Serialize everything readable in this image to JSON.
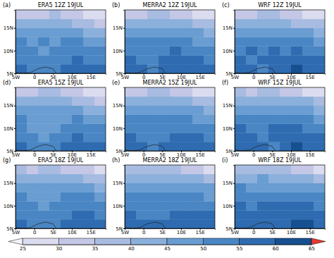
{
  "chart_data": {
    "type": "heatmap",
    "xlim": [
      -5,
      19
    ],
    "ylim": [
      5,
      19
    ],
    "xticks": [
      {
        "value": -5,
        "label": "5W"
      },
      0,
      {
        "value": 5,
        "label": "5E"
      },
      {
        "value": 10,
        "label": "10E"
      },
      {
        "value": 15,
        "label": "15E"
      }
    ],
    "yticks": [
      {
        "value": 5,
        "label": "5N"
      },
      {
        "value": 10,
        "label": "10N"
      },
      {
        "value": 15,
        "label": "15N"
      }
    ],
    "lon_edges": [
      -5,
      -2,
      1,
      4,
      7,
      10,
      13,
      16,
      19
    ],
    "lat_edges": [
      5,
      7,
      9,
      11,
      13,
      15,
      17,
      19
    ],
    "colorbar": {
      "levels": [
        25,
        30,
        35,
        40,
        45,
        50,
        55,
        60,
        65
      ],
      "ticks": [
        25,
        30,
        35,
        40,
        45,
        50,
        55,
        60,
        65
      ],
      "colors": [
        "#f4f4fb",
        "#dcdcf0",
        "#c4c8e6",
        "#a8bbe0",
        "#8cb0dc",
        "#6a9dd1",
        "#4a86c4",
        "#2e6bb0",
        "#175090",
        "#e8382e"
      ]
    },
    "panels": [
      {
        "label": "(a)",
        "title": "ERA5 12Z 19JUL",
        "cells": [
          [
            55,
            52,
            50,
            52,
            55,
            58,
            55,
            55
          ],
          [
            52,
            50,
            50,
            52,
            52,
            55,
            52,
            52
          ],
          [
            52,
            50,
            48,
            50,
            52,
            52,
            50,
            50
          ],
          [
            50,
            48,
            50,
            48,
            50,
            50,
            48,
            45
          ],
          [
            48,
            45,
            45,
            45,
            48,
            45,
            42,
            40
          ],
          [
            40,
            40,
            40,
            42,
            40,
            38,
            35,
            32
          ],
          [
            32,
            32,
            33,
            35,
            32,
            30,
            28,
            25
          ]
        ]
      },
      {
        "label": "(b)",
        "title": "MERRA2 12Z 19JUL",
        "cells": [
          [
            55,
            55,
            52,
            55,
            58,
            58,
            55,
            55
          ],
          [
            55,
            52,
            52,
            55,
            55,
            55,
            55,
            52
          ],
          [
            52,
            52,
            52,
            52,
            55,
            52,
            52,
            50
          ],
          [
            52,
            50,
            50,
            50,
            52,
            50,
            48,
            48
          ],
          [
            48,
            48,
            45,
            48,
            48,
            45,
            45,
            42
          ],
          [
            42,
            42,
            42,
            42,
            40,
            40,
            38,
            35
          ],
          [
            32,
            33,
            35,
            35,
            33,
            30,
            28,
            27
          ]
        ]
      },
      {
        "label": "(c)",
        "title": "WRF 12Z 19JUL",
        "cells": [
          [
            58,
            55,
            52,
            55,
            58,
            60,
            58,
            55
          ],
          [
            55,
            52,
            55,
            55,
            58,
            55,
            55,
            55
          ],
          [
            52,
            55,
            50,
            55,
            52,
            55,
            52,
            50
          ],
          [
            52,
            50,
            52,
            50,
            52,
            50,
            50,
            48
          ],
          [
            48,
            48,
            45,
            48,
            45,
            48,
            45,
            42
          ],
          [
            42,
            40,
            42,
            40,
            42,
            38,
            38,
            35
          ],
          [
            33,
            32,
            35,
            35,
            32,
            30,
            28,
            25
          ]
        ]
      },
      {
        "label": "(d)",
        "title": "ERA5 15Z 19JUL",
        "cells": [
          [
            55,
            52,
            52,
            52,
            55,
            58,
            55,
            55
          ],
          [
            52,
            50,
            48,
            50,
            52,
            55,
            52,
            52
          ],
          [
            50,
            48,
            48,
            48,
            50,
            52,
            50,
            50
          ],
          [
            50,
            48,
            48,
            48,
            48,
            50,
            48,
            45
          ],
          [
            48,
            45,
            45,
            45,
            45,
            45,
            42,
            40
          ],
          [
            42,
            40,
            40,
            42,
            40,
            38,
            35,
            33
          ],
          [
            33,
            32,
            35,
            35,
            33,
            30,
            28,
            25
          ]
        ]
      },
      {
        "label": "(e)",
        "title": "MERRA2 15Z 19JUL",
        "cells": [
          [
            55,
            55,
            52,
            55,
            58,
            58,
            58,
            55
          ],
          [
            55,
            52,
            52,
            52,
            55,
            55,
            55,
            52
          ],
          [
            52,
            52,
            50,
            52,
            52,
            52,
            52,
            50
          ],
          [
            52,
            50,
            50,
            50,
            50,
            50,
            48,
            48
          ],
          [
            48,
            48,
            45,
            48,
            48,
            45,
            45,
            42
          ],
          [
            42,
            42,
            42,
            42,
            42,
            40,
            38,
            35
          ],
          [
            33,
            33,
            35,
            35,
            33,
            30,
            28,
            27
          ]
        ]
      },
      {
        "label": "(f)",
        "title": "WRF 15Z 19JUL",
        "cells": [
          [
            58,
            55,
            55,
            52,
            58,
            60,
            58,
            58
          ],
          [
            55,
            55,
            52,
            55,
            55,
            58,
            55,
            55
          ],
          [
            55,
            52,
            52,
            55,
            55,
            55,
            52,
            52
          ],
          [
            52,
            50,
            52,
            52,
            50,
            52,
            50,
            48
          ],
          [
            48,
            48,
            48,
            48,
            48,
            48,
            45,
            42
          ],
          [
            42,
            42,
            42,
            42,
            42,
            40,
            40,
            35
          ],
          [
            35,
            33,
            35,
            35,
            33,
            32,
            28,
            27
          ]
        ]
      },
      {
        "label": "(g)",
        "title": "ERA5 18Z 19JUL",
        "cells": [
          [
            55,
            52,
            52,
            52,
            55,
            58,
            58,
            55
          ],
          [
            52,
            50,
            50,
            50,
            52,
            55,
            55,
            52
          ],
          [
            50,
            50,
            48,
            50,
            50,
            52,
            52,
            50
          ],
          [
            50,
            48,
            48,
            48,
            50,
            50,
            50,
            48
          ],
          [
            48,
            45,
            45,
            48,
            45,
            45,
            45,
            42
          ],
          [
            42,
            42,
            40,
            42,
            42,
            40,
            38,
            35
          ],
          [
            35,
            33,
            35,
            35,
            33,
            32,
            30,
            27
          ]
        ]
      },
      {
        "label": "(h)",
        "title": "MERRA2 18Z 19JUL",
        "cells": [
          [
            55,
            55,
            55,
            55,
            58,
            58,
            58,
            55
          ],
          [
            55,
            52,
            52,
            52,
            55,
            55,
            55,
            55
          ],
          [
            52,
            52,
            50,
            52,
            52,
            52,
            52,
            52
          ],
          [
            52,
            50,
            50,
            50,
            50,
            50,
            50,
            48
          ],
          [
            48,
            48,
            48,
            48,
            48,
            48,
            45,
            45
          ],
          [
            42,
            42,
            42,
            42,
            42,
            42,
            40,
            38
          ],
          [
            35,
            35,
            35,
            35,
            35,
            32,
            30,
            28
          ]
        ]
      },
      {
        "label": "(i)",
        "title": "WRF 18Z 19JUL",
        "cells": [
          [
            58,
            55,
            55,
            55,
            58,
            60,
            60,
            58
          ],
          [
            55,
            55,
            55,
            55,
            55,
            58,
            58,
            55
          ],
          [
            55,
            52,
            55,
            55,
            55,
            55,
            55,
            52
          ],
          [
            52,
            52,
            52,
            52,
            52,
            52,
            52,
            50
          ],
          [
            50,
            48,
            48,
            48,
            48,
            48,
            48,
            45
          ],
          [
            42,
            42,
            45,
            42,
            42,
            42,
            40,
            38
          ],
          [
            35,
            35,
            38,
            35,
            35,
            32,
            30,
            28
          ]
        ]
      }
    ]
  }
}
